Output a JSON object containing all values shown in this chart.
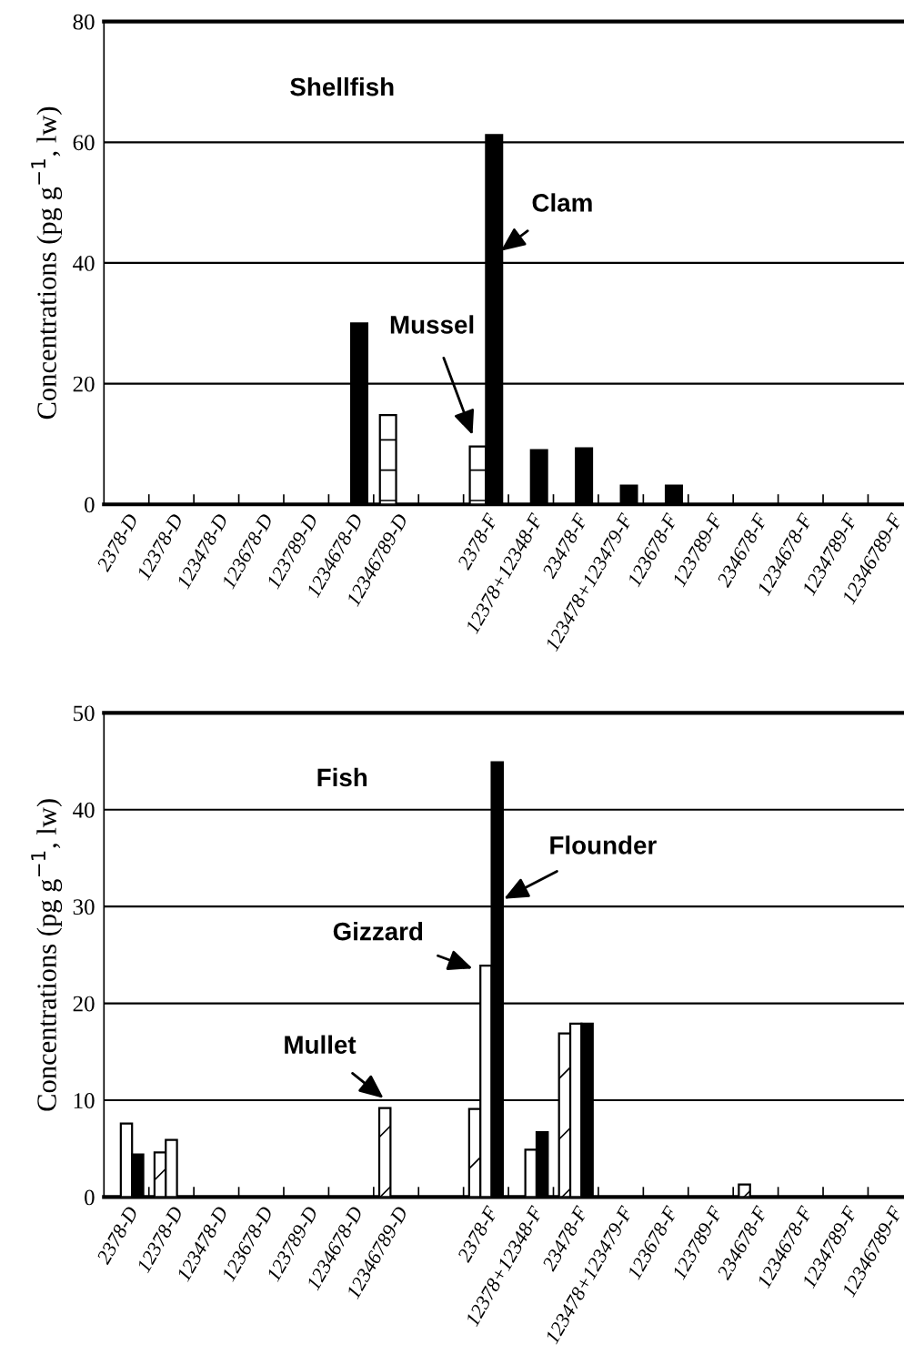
{
  "chart_data": [
    {
      "type": "bar",
      "title": "Shellfish",
      "ylabel": "Concentrations (pg g$^{−1}$, lw)",
      "categories": [
        "2378-D",
        "12378-D",
        "123478-D",
        "123678-D",
        "123789-D",
        "1234678-D",
        "12346789-D",
        null,
        "2378-F",
        "12378+12348-F",
        "23478-F",
        "123478+123479-F",
        "123678-F",
        "123789-F",
        "234678-F",
        "1234678-F",
        "1234789-F",
        "12346789-F"
      ],
      "series": [
        {
          "name": "Mussel",
          "color": "#ffffff",
          "values": [
            null,
            null,
            null,
            null,
            null,
            null,
            14.8,
            null,
            9.6,
            null,
            null,
            null,
            null,
            null,
            null,
            null,
            null,
            null
          ]
        },
        {
          "name": "Clam",
          "color": "#000000",
          "values": [
            null,
            null,
            null,
            null,
            null,
            30,
            null,
            null,
            61.2,
            9,
            9.3,
            3.1,
            3.1,
            null,
            null,
            null,
            null,
            null
          ]
        }
      ],
      "ylim": [
        0,
        80
      ],
      "yticks": [
        0,
        20,
        40,
        60,
        80
      ],
      "grid": "y",
      "legend": false
    },
    {
      "type": "bar",
      "title": "Fish",
      "ylabel": "Concentrations (pg g$^{−1}$, lw)",
      "categories": [
        "2378-D",
        "12378-D",
        "123478-D",
        "123678-D",
        "123789-D",
        "1234678-D",
        "12346789-D",
        null,
        "2378-F",
        "12378+12348-F",
        "23478-F",
        "123478+123479-F",
        "123678-F",
        "123789-F",
        "234678-F",
        "1234678-F",
        "1234789-F",
        "12346789-F"
      ],
      "series": [
        {
          "name": "Mullet",
          "color": "#ffffff",
          "values": [
            null,
            4.6,
            null,
            null,
            null,
            null,
            9.2,
            null,
            9.1,
            null,
            16.9,
            null,
            null,
            null,
            1.3,
            null,
            null,
            null
          ]
        },
        {
          "name": "Gizzard",
          "color": "#ffffff",
          "values": [
            7.6,
            5.9,
            null,
            null,
            null,
            null,
            null,
            null,
            23.9,
            4.9,
            17.9,
            null,
            null,
            null,
            null,
            null,
            null,
            null
          ]
        },
        {
          "name": "Flounder",
          "color": "#000000",
          "values": [
            4.4,
            null,
            null,
            null,
            null,
            null,
            null,
            null,
            44.9,
            6.7,
            17.9,
            null,
            null,
            null,
            null,
            null,
            null,
            null
          ]
        }
      ],
      "ylim": [
        0,
        50
      ],
      "yticks": [
        0,
        10,
        20,
        30,
        40,
        50
      ],
      "grid": "y",
      "legend": false
    }
  ]
}
